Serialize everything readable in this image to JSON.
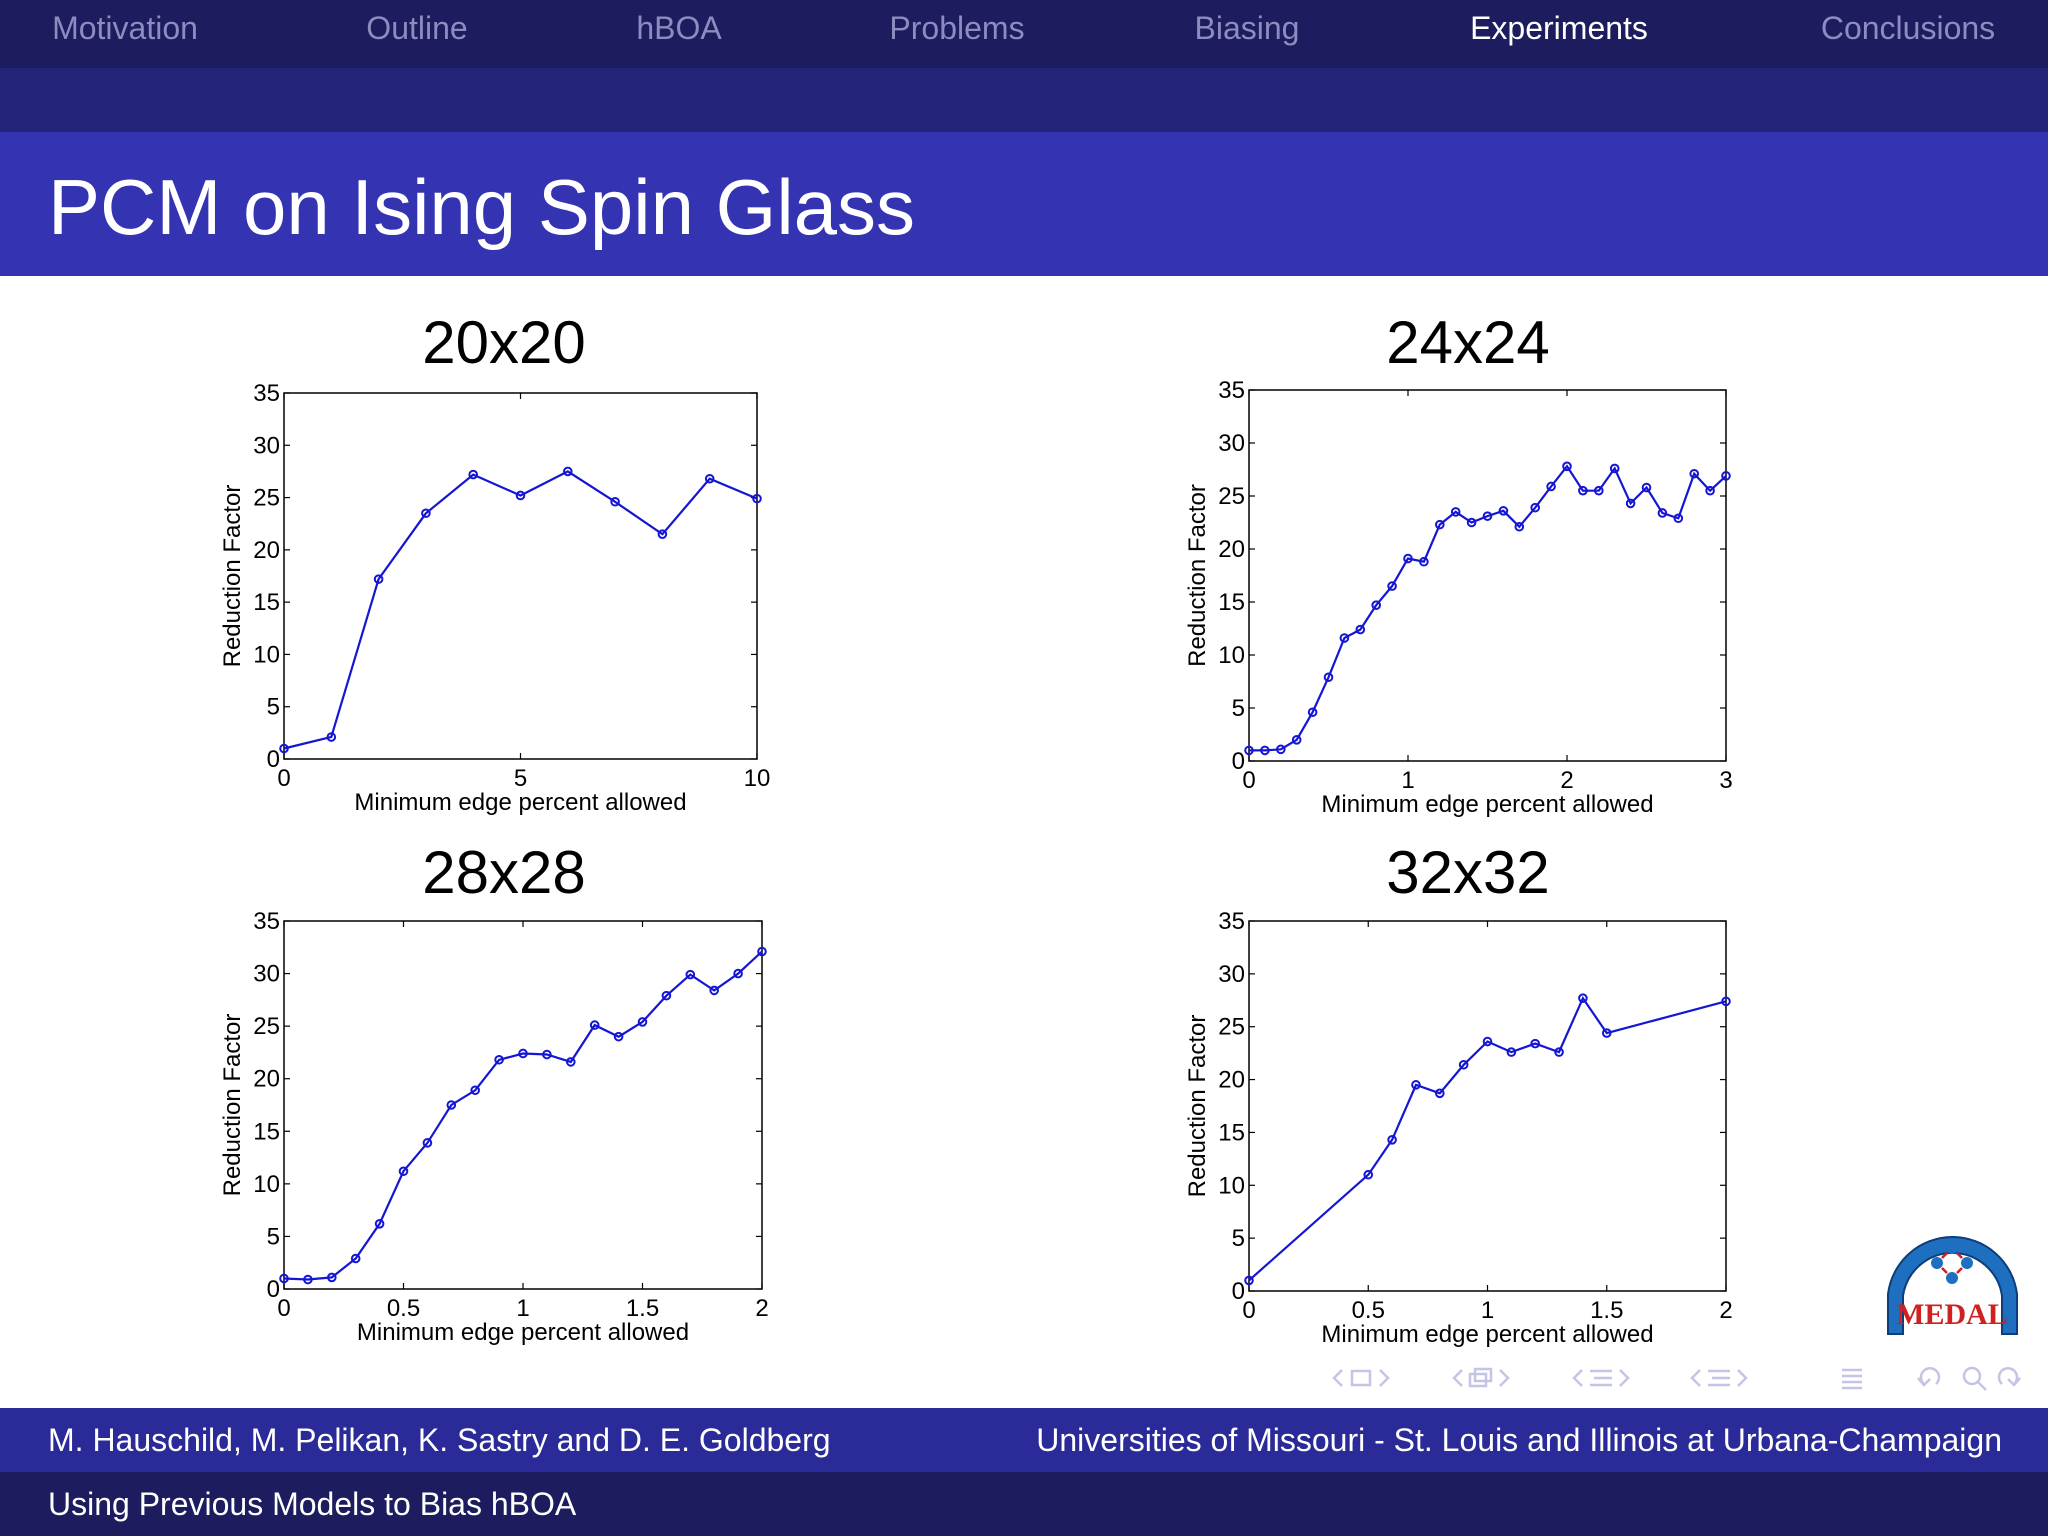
{
  "nav": {
    "items": [
      "Motivation",
      "Outline",
      "hBOA",
      "Problems",
      "Biasing",
      "Experiments",
      "Conclusions"
    ],
    "active": "Experiments"
  },
  "slide": {
    "title": "PCM on Ising Spin Glass"
  },
  "footer": {
    "authors": "M. Hauschild, M. Pelikan, K. Sastry and D. E. Goldberg",
    "affiliation": "Universities of Missouri - St. Louis and Illinois at Urbana-Champaign",
    "talk_title": "Using Previous Models to Bias hBOA"
  },
  "logo": {
    "text": "MEDAL"
  },
  "colors": {
    "series": "#1515d4",
    "navbar": "#1c1c5e",
    "titlebar": "#3434b2"
  },
  "chart_data": [
    {
      "type": "line",
      "title": "20x20",
      "xlabel": "Minimum edge percent allowed",
      "ylabel": "Reduction Factor",
      "xlim": [
        0,
        10
      ],
      "ylim": [
        0,
        35
      ],
      "xticks": [
        0,
        5,
        10
      ],
      "xtick_labels": [
        "0",
        "5",
        "10"
      ],
      "yticks": [
        0,
        5,
        10,
        15,
        20,
        25,
        30,
        35
      ],
      "x": [
        0,
        1,
        2,
        3,
        4,
        5,
        6,
        7,
        8,
        9,
        10
      ],
      "y": [
        1.0,
        2.1,
        17.2,
        23.5,
        27.2,
        25.2,
        27.5,
        24.6,
        21.5,
        26.8,
        24.9
      ]
    },
    {
      "type": "line",
      "title": "24x24",
      "xlabel": "Minimum edge percent allowed",
      "ylabel": "Reduction Factor",
      "xlim": [
        0,
        3
      ],
      "ylim": [
        0,
        35
      ],
      "xticks": [
        0,
        1,
        2,
        3
      ],
      "xtick_labels": [
        "0",
        "1",
        "2",
        "3"
      ],
      "yticks": [
        0,
        5,
        10,
        15,
        20,
        25,
        30,
        35
      ],
      "x": [
        0,
        0.1,
        0.2,
        0.3,
        0.4,
        0.5,
        0.6,
        0.7,
        0.8,
        0.9,
        1.0,
        1.1,
        1.2,
        1.3,
        1.4,
        1.5,
        1.6,
        1.7,
        1.8,
        1.9,
        2.0,
        2.1,
        2.2,
        2.3,
        2.4,
        2.5,
        2.6,
        2.7,
        2.8,
        2.9,
        3.0
      ],
      "y": [
        1.0,
        1.0,
        1.1,
        2.0,
        4.6,
        7.9,
        11.6,
        12.4,
        14.7,
        16.5,
        19.1,
        18.8,
        22.3,
        23.5,
        22.5,
        23.1,
        23.6,
        22.1,
        23.9,
        25.9,
        27.8,
        25.5,
        25.5,
        27.6,
        24.3,
        25.8,
        23.4,
        22.9,
        27.1,
        25.5,
        26.9
      ]
    },
    {
      "type": "line",
      "title": "28x28",
      "xlabel": "Minimum edge percent allowed",
      "ylabel": "Reduction Factor",
      "xlim": [
        0,
        2
      ],
      "ylim": [
        0,
        35
      ],
      "xticks": [
        0,
        0.5,
        1,
        1.5,
        2
      ],
      "xtick_labels": [
        "0",
        "0.5",
        "1",
        "1.5",
        "2"
      ],
      "yticks": [
        0,
        5,
        10,
        15,
        20,
        25,
        30,
        35
      ],
      "x": [
        0,
        0.1,
        0.2,
        0.3,
        0.4,
        0.5,
        0.6,
        0.7,
        0.8,
        0.9,
        1.0,
        1.1,
        1.2,
        1.3,
        1.4,
        1.5,
        1.6,
        1.7,
        1.8,
        1.9,
        2.0
      ],
      "y": [
        1.0,
        0.9,
        1.1,
        2.9,
        6.2,
        11.2,
        13.9,
        17.5,
        18.9,
        21.8,
        22.4,
        22.3,
        21.6,
        25.1,
        24.0,
        25.4,
        27.9,
        29.9,
        28.4,
        30.0,
        32.1
      ]
    },
    {
      "type": "line",
      "title": "32x32",
      "xlabel": "Minimum edge percent allowed",
      "ylabel": "Reduction Factor",
      "xlim": [
        0,
        2
      ],
      "ylim": [
        0,
        35
      ],
      "xticks": [
        0,
        0.5,
        1,
        1.5,
        2
      ],
      "xtick_labels": [
        "0",
        "0.5",
        "1",
        "1.5",
        "2"
      ],
      "yticks": [
        0,
        5,
        10,
        15,
        20,
        25,
        30,
        35
      ],
      "x": [
        0,
        0.5,
        0.6,
        0.7,
        0.8,
        0.9,
        1.0,
        1.1,
        1.2,
        1.3,
        1.4,
        1.5,
        2.0
      ],
      "y": [
        1.0,
        11.0,
        14.3,
        19.5,
        18.7,
        21.4,
        23.6,
        22.6,
        23.4,
        22.6,
        27.7,
        24.4,
        27.4
      ]
    }
  ]
}
